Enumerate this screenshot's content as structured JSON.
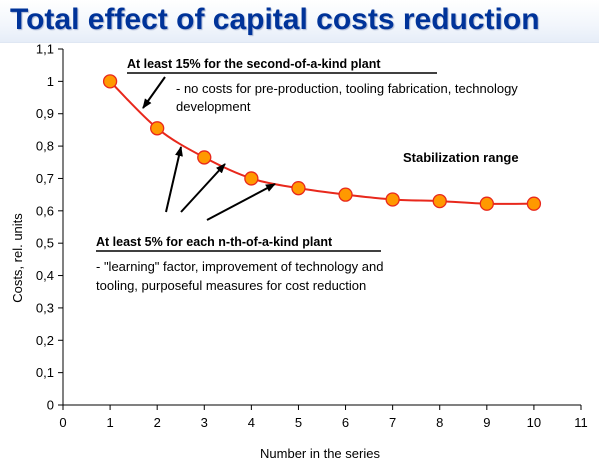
{
  "chart_data": {
    "type": "line",
    "title": "Total effect of capital costs reduction",
    "xlabel": "Number in the series",
    "ylabel": "Costs, rel. units",
    "xlim": [
      0,
      11
    ],
    "ylim": [
      0,
      1.1
    ],
    "x_ticks": [
      "0",
      "1",
      "2",
      "3",
      "4",
      "5",
      "6",
      "7",
      "8",
      "9",
      "10",
      "11"
    ],
    "y_ticks": [
      "0",
      "0,1",
      "0,2",
      "0,3",
      "0,4",
      "0,5",
      "0,6",
      "0,7",
      "0,8",
      "0,9",
      "1",
      "1,1"
    ],
    "grid": false,
    "series": [
      {
        "x": [
          1,
          2,
          3,
          4,
          5,
          6,
          7,
          8,
          9,
          10
        ],
        "values": [
          1.0,
          0.855,
          0.765,
          0.7,
          0.67,
          0.65,
          0.635,
          0.63,
          0.622,
          0.622
        ],
        "line_color": "#e8281c",
        "marker_color": "#ff9900",
        "marker_edge": "#e8281c"
      }
    ],
    "annotations": {
      "second_kind": {
        "heading": "At least 15% for the second-of-a-kind plant",
        "lines": [
          "- no costs for pre-production, tooling fabrication, technology",
          "development"
        ]
      },
      "nth_kind": {
        "heading": "At least 5% for each n-th-of-a-kind plant",
        "lines": [
          "-  \"learning\" factor, improvement of technology and",
          "tooling, purposeful measures for cost reduction"
        ]
      },
      "stabilization": "Stabilization range"
    }
  }
}
